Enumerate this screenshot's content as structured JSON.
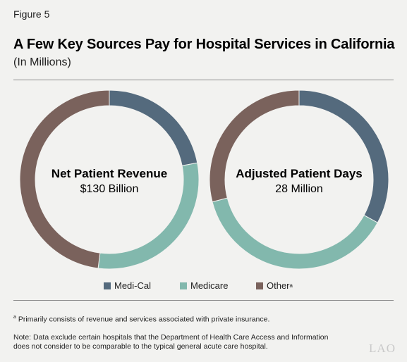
{
  "figure_label": "Figure 5",
  "title": "A Few Key Sources Pay for Hospital Services in California",
  "subtitle": "(In Millions)",
  "colors": {
    "medi_cal": "#546a7d",
    "medicare": "#82b8ad",
    "other": "#7a625c"
  },
  "chart_data": [
    {
      "type": "pie",
      "style": "donut",
      "center_title": "Net Patient Revenue",
      "center_value": "$130 Billion",
      "slices": [
        {
          "name": "Medi-Cal",
          "value": 0.22
        },
        {
          "name": "Medicare",
          "value": 0.3
        },
        {
          "name": "Other",
          "value": 0.48
        }
      ]
    },
    {
      "type": "pie",
      "style": "donut",
      "center_title": "Adjusted Patient Days",
      "center_value": "28 Million",
      "slices": [
        {
          "name": "Medi-Cal",
          "value": 0.33
        },
        {
          "name": "Medicare",
          "value": 0.38
        },
        {
          "name": "Other",
          "value": 0.29
        }
      ]
    }
  ],
  "legend": [
    {
      "label": "Medi-Cal",
      "sup": "",
      "color_key": "medi_cal"
    },
    {
      "label": "Medicare",
      "sup": "",
      "color_key": "medicare"
    },
    {
      "label": "Other",
      "sup": "a",
      "color_key": "other"
    }
  ],
  "footnote": {
    "marker": "a",
    "text": " Primarily consists of revenue and services associated with private insurance."
  },
  "note": "Note: Data exclude certain hospitals that the Department of Health Care Access and Information does not consider to be comparable to the typical general acute care hospital.",
  "logo": "LAO"
}
